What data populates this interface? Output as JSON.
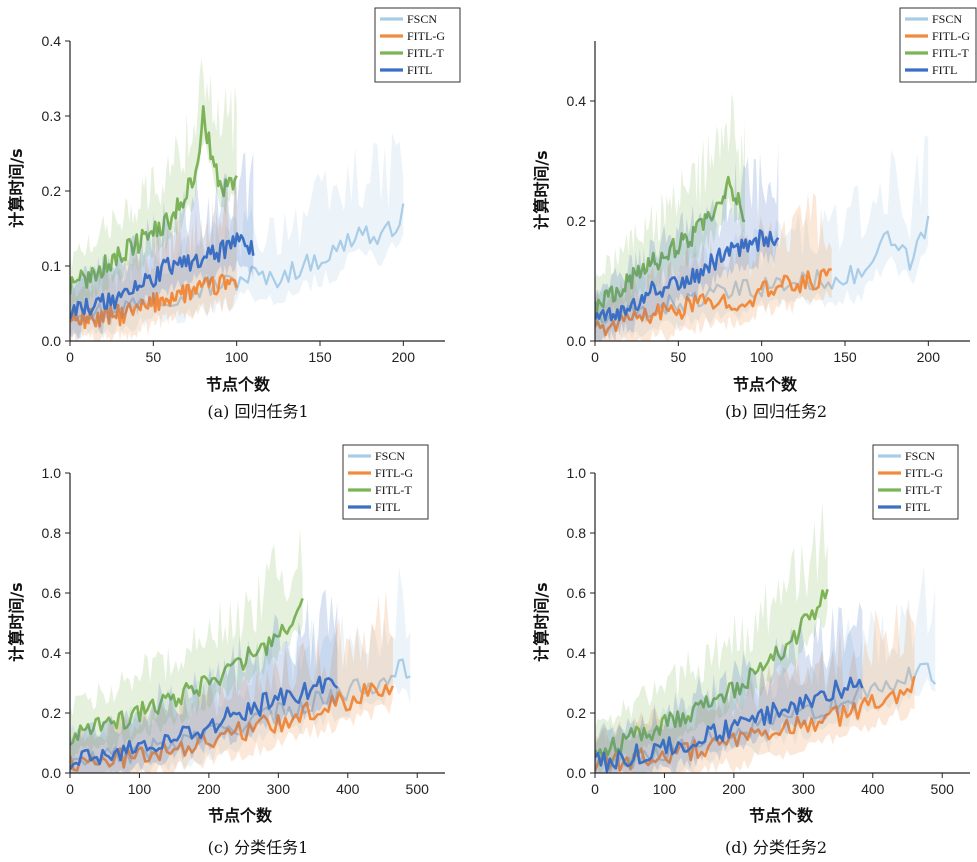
{
  "figure": {
    "series_styles": [
      {
        "name": "FSCN",
        "color": "#a9cde8"
      },
      {
        "name": "FITL-G",
        "color": "#f28a3d"
      },
      {
        "name": "FITL-T",
        "color": "#7cb356"
      },
      {
        "name": "FITL",
        "color": "#3a6fc4"
      }
    ]
  },
  "chart_data": [
    {
      "type": "line",
      "caption": "(a) 回归任务1",
      "xlabel": "节点个数",
      "ylabel": "计算时间/s",
      "xlim": [
        0,
        225
      ],
      "ylim": [
        0,
        0.4
      ],
      "xticks": [
        "0",
        "50",
        "100",
        "150",
        "200"
      ],
      "yticks": [
        "0.0",
        "0.1",
        "0.2",
        "0.3",
        "0.4"
      ],
      "legend": [
        "FSCN",
        "FITL-G",
        "FITL-T",
        "FITL"
      ],
      "legend_position": "top-right",
      "series": [
        {
          "name": "FSCN",
          "x_end": 200,
          "points": [
            [
              0,
              0.04
            ],
            [
              20,
              0.04
            ],
            [
              40,
              0.05
            ],
            [
              60,
              0.06
            ],
            [
              80,
              0.07
            ],
            [
              100,
              0.08
            ],
            [
              110,
              0.09
            ],
            [
              120,
              0.08
            ],
            [
              140,
              0.1
            ],
            [
              160,
              0.12
            ],
            [
              175,
              0.15
            ],
            [
              185,
              0.13
            ],
            [
              200,
              0.17
            ]
          ]
        },
        {
          "name": "FITL-G",
          "x_end": 100,
          "points": [
            [
              0,
              0.03
            ],
            [
              20,
              0.03
            ],
            [
              40,
              0.04
            ],
            [
              60,
              0.06
            ],
            [
              80,
              0.07
            ],
            [
              100,
              0.08
            ]
          ]
        },
        {
          "name": "FITL-T",
          "x_end": 100,
          "points": [
            [
              0,
              0.07
            ],
            [
              20,
              0.1
            ],
            [
              40,
              0.13
            ],
            [
              60,
              0.16
            ],
            [
              75,
              0.22
            ],
            [
              80,
              0.3
            ],
            [
              90,
              0.2
            ],
            [
              100,
              0.22
            ]
          ]
        },
        {
          "name": "FITL",
          "x_end": 110,
          "points": [
            [
              0,
              0.04
            ],
            [
              20,
              0.05
            ],
            [
              40,
              0.07
            ],
            [
              60,
              0.1
            ],
            [
              80,
              0.11
            ],
            [
              100,
              0.13
            ],
            [
              110,
              0.12
            ]
          ]
        }
      ]
    },
    {
      "type": "line",
      "caption": "(b) 回归任务2",
      "xlabel": "节点个数",
      "ylabel": "计算时间/s",
      "xlim": [
        0,
        225
      ],
      "ylim": [
        0,
        0.5
      ],
      "xticks": [
        "0",
        "50",
        "100",
        "150",
        "200"
      ],
      "yticks": [
        "0.0",
        "0.2",
        "0.4"
      ],
      "legend": [
        "FSCN",
        "FITL-G",
        "FITL-T",
        "FITL"
      ],
      "legend_position": "top-right",
      "series": [
        {
          "name": "FSCN",
          "x_end": 200,
          "points": [
            [
              0,
              0.03
            ],
            [
              30,
              0.05
            ],
            [
              60,
              0.07
            ],
            [
              100,
              0.09
            ],
            [
              130,
              0.1
            ],
            [
              160,
              0.11
            ],
            [
              175,
              0.17
            ],
            [
              190,
              0.13
            ],
            [
              200,
              0.2
            ]
          ]
        },
        {
          "name": "FITL-G",
          "x_end": 142,
          "points": [
            [
              0,
              0.02
            ],
            [
              30,
              0.04
            ],
            [
              60,
              0.06
            ],
            [
              90,
              0.07
            ],
            [
              110,
              0.09
            ],
            [
              130,
              0.1
            ],
            [
              142,
              0.11
            ]
          ]
        },
        {
          "name": "FITL-T",
          "x_end": 90,
          "points": [
            [
              0,
              0.06
            ],
            [
              20,
              0.1
            ],
            [
              40,
              0.14
            ],
            [
              60,
              0.18
            ],
            [
              75,
              0.22
            ],
            [
              80,
              0.26
            ],
            [
              90,
              0.21
            ]
          ]
        },
        {
          "name": "FITL",
          "x_end": 110,
          "points": [
            [
              0,
              0.03
            ],
            [
              20,
              0.06
            ],
            [
              40,
              0.09
            ],
            [
              60,
              0.11
            ],
            [
              80,
              0.15
            ],
            [
              100,
              0.17
            ],
            [
              110,
              0.18
            ]
          ]
        }
      ]
    },
    {
      "type": "line",
      "caption": "(c) 分类任务1",
      "xlabel": "节点个数",
      "ylabel": "计算时间/s",
      "xlim": [
        0,
        540
      ],
      "ylim": [
        0,
        1.0
      ],
      "xticks": [
        "0",
        "100",
        "200",
        "300",
        "400",
        "500"
      ],
      "yticks": [
        "0.0",
        "0.2",
        "0.4",
        "0.6",
        "0.8",
        "1.0"
      ],
      "legend": [
        "FSCN",
        "FITL-G",
        "FITL-T",
        "FITL"
      ],
      "legend_position": "top-right",
      "series": [
        {
          "name": "FSCN",
          "x_end": 490,
          "points": [
            [
              0,
              0.03
            ],
            [
              100,
              0.07
            ],
            [
              200,
              0.13
            ],
            [
              300,
              0.2
            ],
            [
              380,
              0.26
            ],
            [
              440,
              0.3
            ],
            [
              480,
              0.37
            ],
            [
              490,
              0.32
            ]
          ]
        },
        {
          "name": "FITL-G",
          "x_end": 465,
          "points": [
            [
              0,
              0.03
            ],
            [
              100,
              0.06
            ],
            [
              200,
              0.11
            ],
            [
              300,
              0.17
            ],
            [
              380,
              0.23
            ],
            [
              420,
              0.26
            ],
            [
              465,
              0.3
            ]
          ]
        },
        {
          "name": "FITL-T",
          "x_end": 335,
          "points": [
            [
              0,
              0.12
            ],
            [
              100,
              0.2
            ],
            [
              200,
              0.3
            ],
            [
              280,
              0.42
            ],
            [
              335,
              0.55
            ]
          ]
        },
        {
          "name": "FITL",
          "x_end": 385,
          "points": [
            [
              0,
              0.03
            ],
            [
              100,
              0.08
            ],
            [
              200,
              0.16
            ],
            [
              300,
              0.25
            ],
            [
              385,
              0.3
            ]
          ]
        }
      ]
    },
    {
      "type": "line",
      "caption": "(d) 分类任务2",
      "xlabel": "节点个数",
      "ylabel": "计算时间/s",
      "xlim": [
        0,
        540
      ],
      "ylim": [
        0,
        1.0
      ],
      "xticks": [
        "0",
        "100",
        "200",
        "300",
        "400",
        "500"
      ],
      "yticks": [
        "0.0",
        "0.2",
        "0.4",
        "0.6",
        "0.8",
        "1.0"
      ],
      "legend": [
        "FSCN",
        "FITL-G",
        "FITL-T",
        "FITL"
      ],
      "legend_position": "top-right",
      "series": [
        {
          "name": "FSCN",
          "x_end": 490,
          "points": [
            [
              0,
              0.03
            ],
            [
              100,
              0.07
            ],
            [
              200,
              0.13
            ],
            [
              300,
              0.2
            ],
            [
              380,
              0.26
            ],
            [
              440,
              0.3
            ],
            [
              480,
              0.37
            ],
            [
              490,
              0.31
            ]
          ]
        },
        {
          "name": "FITL-G",
          "x_end": 460,
          "points": [
            [
              0,
              0.03
            ],
            [
              100,
              0.06
            ],
            [
              200,
              0.1
            ],
            [
              300,
              0.16
            ],
            [
              380,
              0.21
            ],
            [
              420,
              0.25
            ],
            [
              460,
              0.29
            ]
          ]
        },
        {
          "name": "FITL-T",
          "x_end": 335,
          "points": [
            [
              0,
              0.07
            ],
            [
              100,
              0.16
            ],
            [
              200,
              0.28
            ],
            [
              280,
              0.43
            ],
            [
              335,
              0.6
            ]
          ]
        },
        {
          "name": "FITL",
          "x_end": 385,
          "points": [
            [
              0,
              0.03
            ],
            [
              100,
              0.08
            ],
            [
              200,
              0.15
            ],
            [
              300,
              0.24
            ],
            [
              385,
              0.3
            ]
          ]
        }
      ]
    }
  ]
}
